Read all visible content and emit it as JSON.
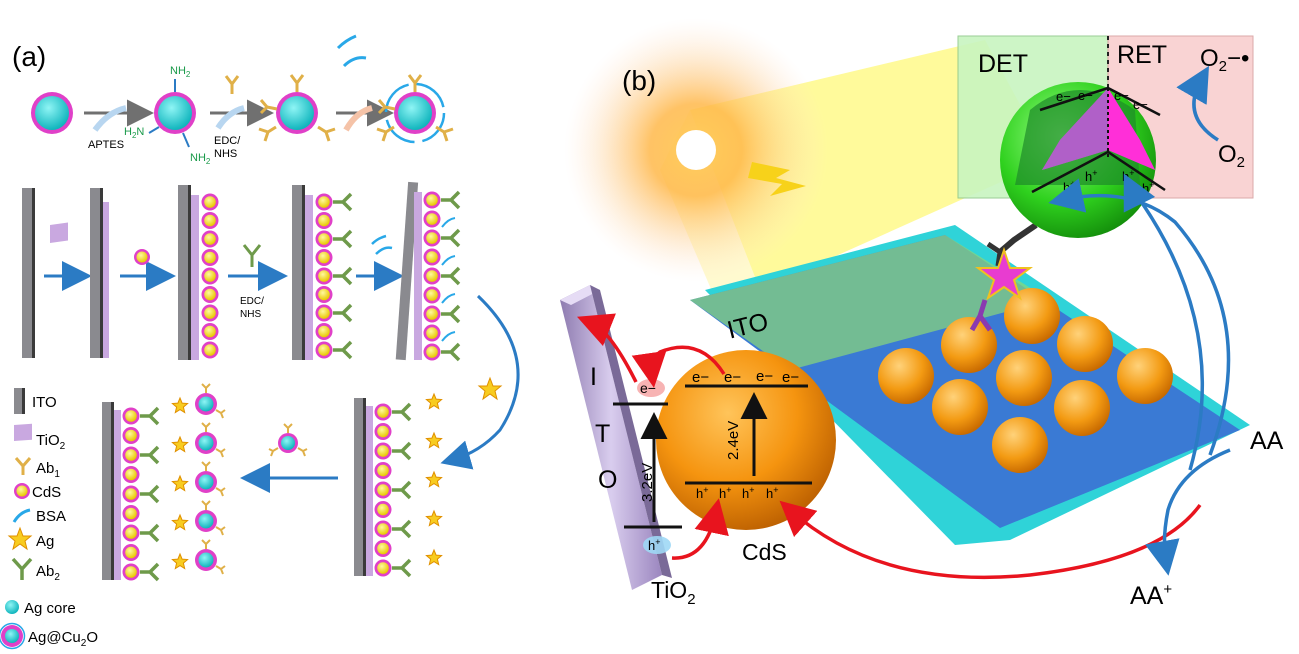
{
  "panel_a": {
    "label": "(a)",
    "step_labels": {
      "aptes": "APTES",
      "nh2": "NH",
      "nh2_sub": "2",
      "h2n": "H",
      "h2n_sub": "2",
      "h2n_tail": "N",
      "edc_nhs_line1": "EDC/",
      "edc_nhs_line2": "NHS"
    },
    "legend": [
      {
        "key": "ito",
        "text": "ITO",
        "sub": ""
      },
      {
        "key": "tio2",
        "text": "TiO",
        "sub": "2"
      },
      {
        "key": "ab1",
        "text": "Ab",
        "sub": "1"
      },
      {
        "key": "cds",
        "text": "CdS",
        "sub": ""
      },
      {
        "key": "bsa",
        "text": "BSA",
        "sub": ""
      },
      {
        "key": "ag",
        "text": "Ag",
        "sub": ""
      },
      {
        "key": "ab2",
        "text": "Ab",
        "sub": "2"
      },
      {
        "key": "agcore",
        "text": "Ag core",
        "sub": ""
      },
      {
        "key": "agcu2o",
        "text": "Ag@Cu",
        "sub": "2",
        "tail": "O"
      }
    ]
  },
  "panel_b": {
    "label": "(b)",
    "det": "DET",
    "ret": "RET",
    "o2_radical": "O",
    "o2_radical_sub": "2",
    "o2_radical_tail": "−•",
    "o2": "O",
    "o2_sub": "2",
    "electron": "e−",
    "hole": "h",
    "hole_sup": "+",
    "ito_plate": "ITO",
    "ito_rod": [
      "I",
      "T",
      "O"
    ],
    "gap_tio2": "3.2eV",
    "gap_cds": "2.4eV",
    "cds": "CdS",
    "tio2": "TiO",
    "tio2_sub": "2",
    "aa": "AA",
    "aa_plus": "AA",
    "aa_plus_sup": "+"
  },
  "colors": {
    "arrow_blue": "#2b7bc4",
    "arrow_red": "#e8141e",
    "tio2_purple": "#c9a8e0",
    "ito_gray": "#8a8a8f",
    "cds_pink": "#e040c8",
    "cds_yellow": "#f5e61a",
    "ag_cyan": "#24d6d6",
    "ab_gold": "#e0b048",
    "ab2_green": "#6e9a4a",
    "sphere_orange": "#f39a12",
    "plate_blue": "#3a7ad4",
    "plate_cyan": "#2fd3d8"
  }
}
